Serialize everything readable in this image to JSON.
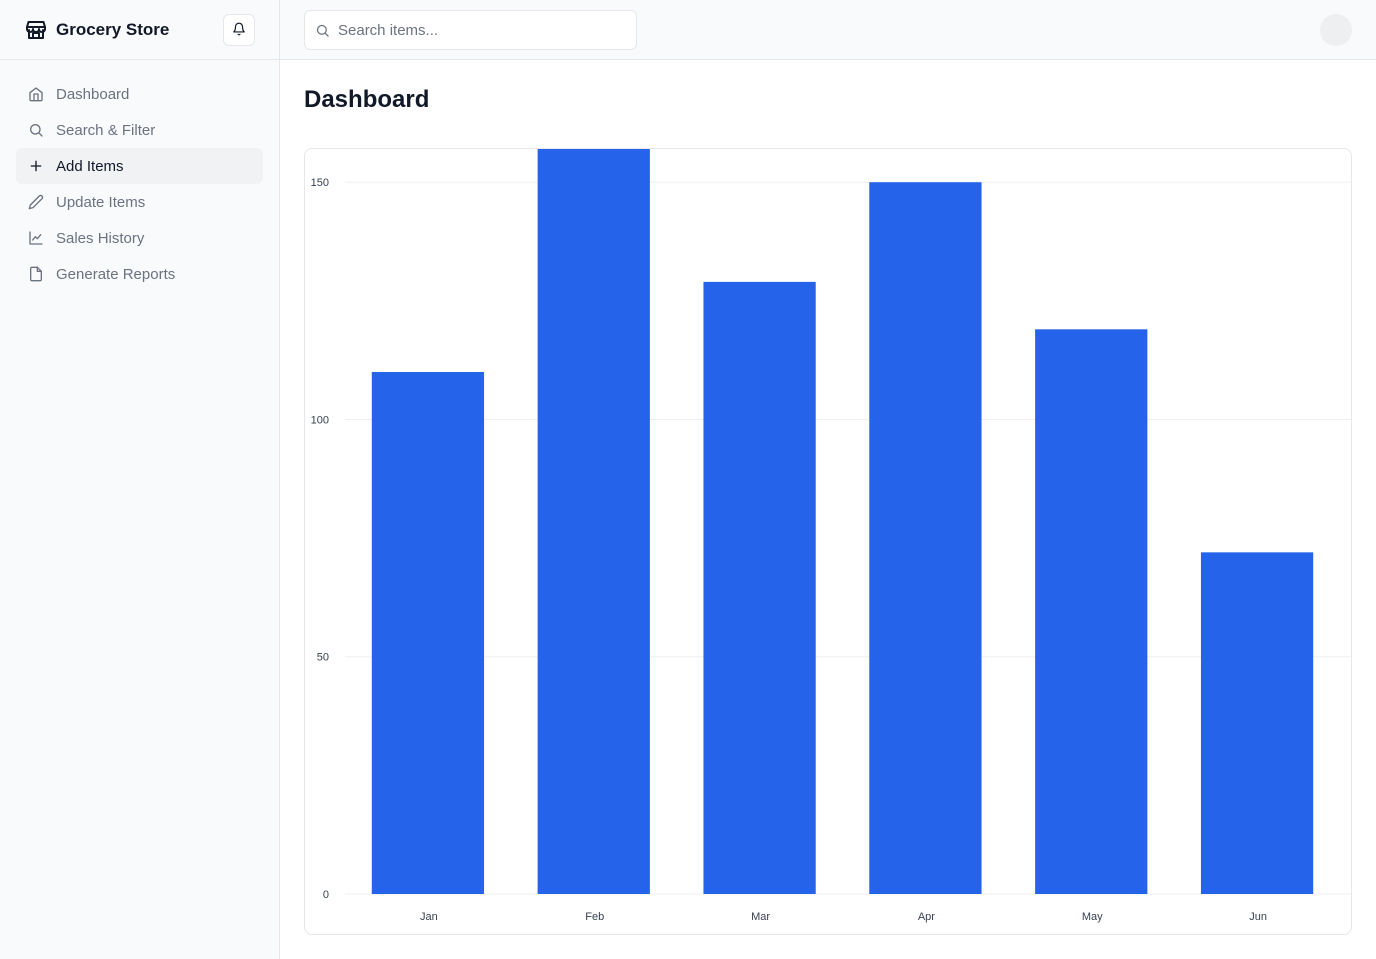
{
  "app": {
    "title": "Grocery Store"
  },
  "search": {
    "placeholder": "Search items...",
    "value": ""
  },
  "sidebar": {
    "items": [
      {
        "label": "Dashboard",
        "icon": "home-icon",
        "active": false
      },
      {
        "label": "Search & Filter",
        "icon": "search-icon",
        "active": false
      },
      {
        "label": "Add Items",
        "icon": "plus-icon",
        "active": true
      },
      {
        "label": "Update Items",
        "icon": "pencil-icon",
        "active": false
      },
      {
        "label": "Sales History",
        "icon": "line-chart-icon",
        "active": false
      },
      {
        "label": "Generate Reports",
        "icon": "file-icon",
        "active": false
      }
    ]
  },
  "main": {
    "title": "Dashboard"
  },
  "colors": {
    "bar": "#2563eb",
    "grid": "#f0f0f0",
    "sidebar_bg": "#f9fafb",
    "border": "#e5e7eb"
  },
  "chart_data": {
    "type": "bar",
    "categories": [
      "Jan",
      "Feb",
      "Mar",
      "Apr",
      "May",
      "Jun"
    ],
    "values": [
      110,
      157,
      129,
      150,
      119,
      72
    ],
    "yticks": [
      0,
      50,
      100,
      150
    ],
    "ylim": [
      0,
      157
    ],
    "grid": true,
    "title": "",
    "xlabel": "",
    "ylabel": ""
  }
}
